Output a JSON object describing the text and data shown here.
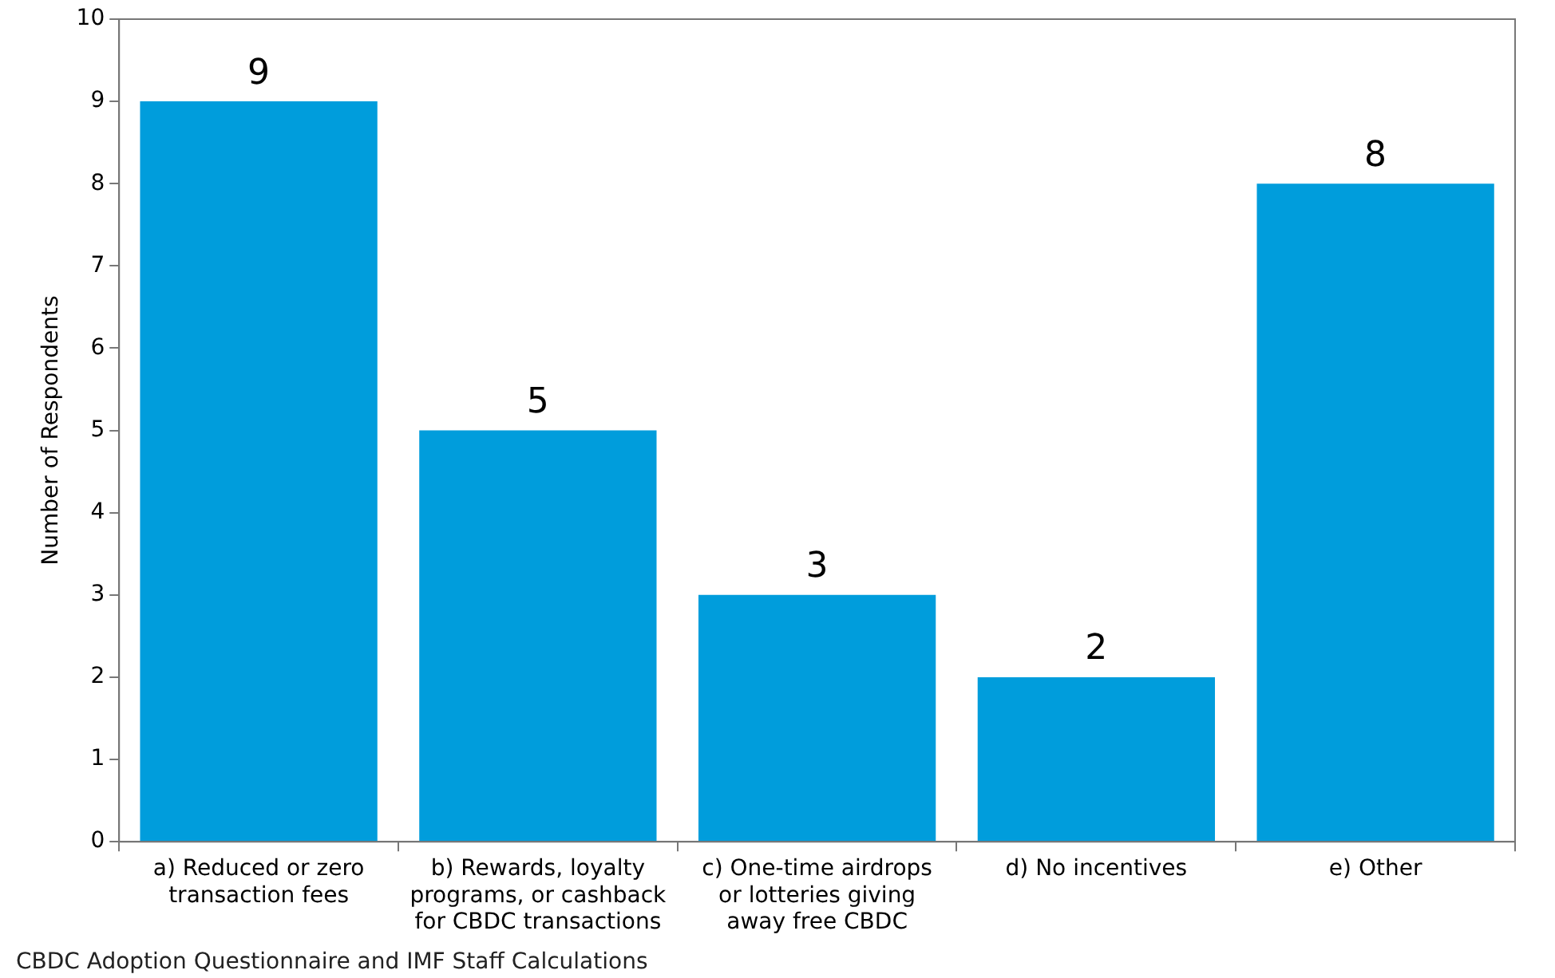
{
  "chart_data": {
    "type": "bar",
    "ylabel": "Number of Respondents",
    "categories": [
      "a) Reduced or zero transaction fees",
      "b) Rewards, loyalty programs, or cashback for CBDC transactions",
      "c) One-time airdrops or lotteries giving away free CBDC",
      "d) No incentives",
      "e) Other"
    ],
    "values": [
      9,
      5,
      3,
      2,
      8
    ],
    "color": "#009ddc",
    "ylim": [
      0,
      10
    ],
    "yticks": [
      0,
      1,
      2,
      3,
      4,
      5,
      6,
      7,
      8,
      9,
      10
    ],
    "grid": false,
    "legend": false,
    "data_labels": true,
    "annotations": [
      "CBDC Adoption Questionnaire and IMF Staff Calculations"
    ]
  }
}
